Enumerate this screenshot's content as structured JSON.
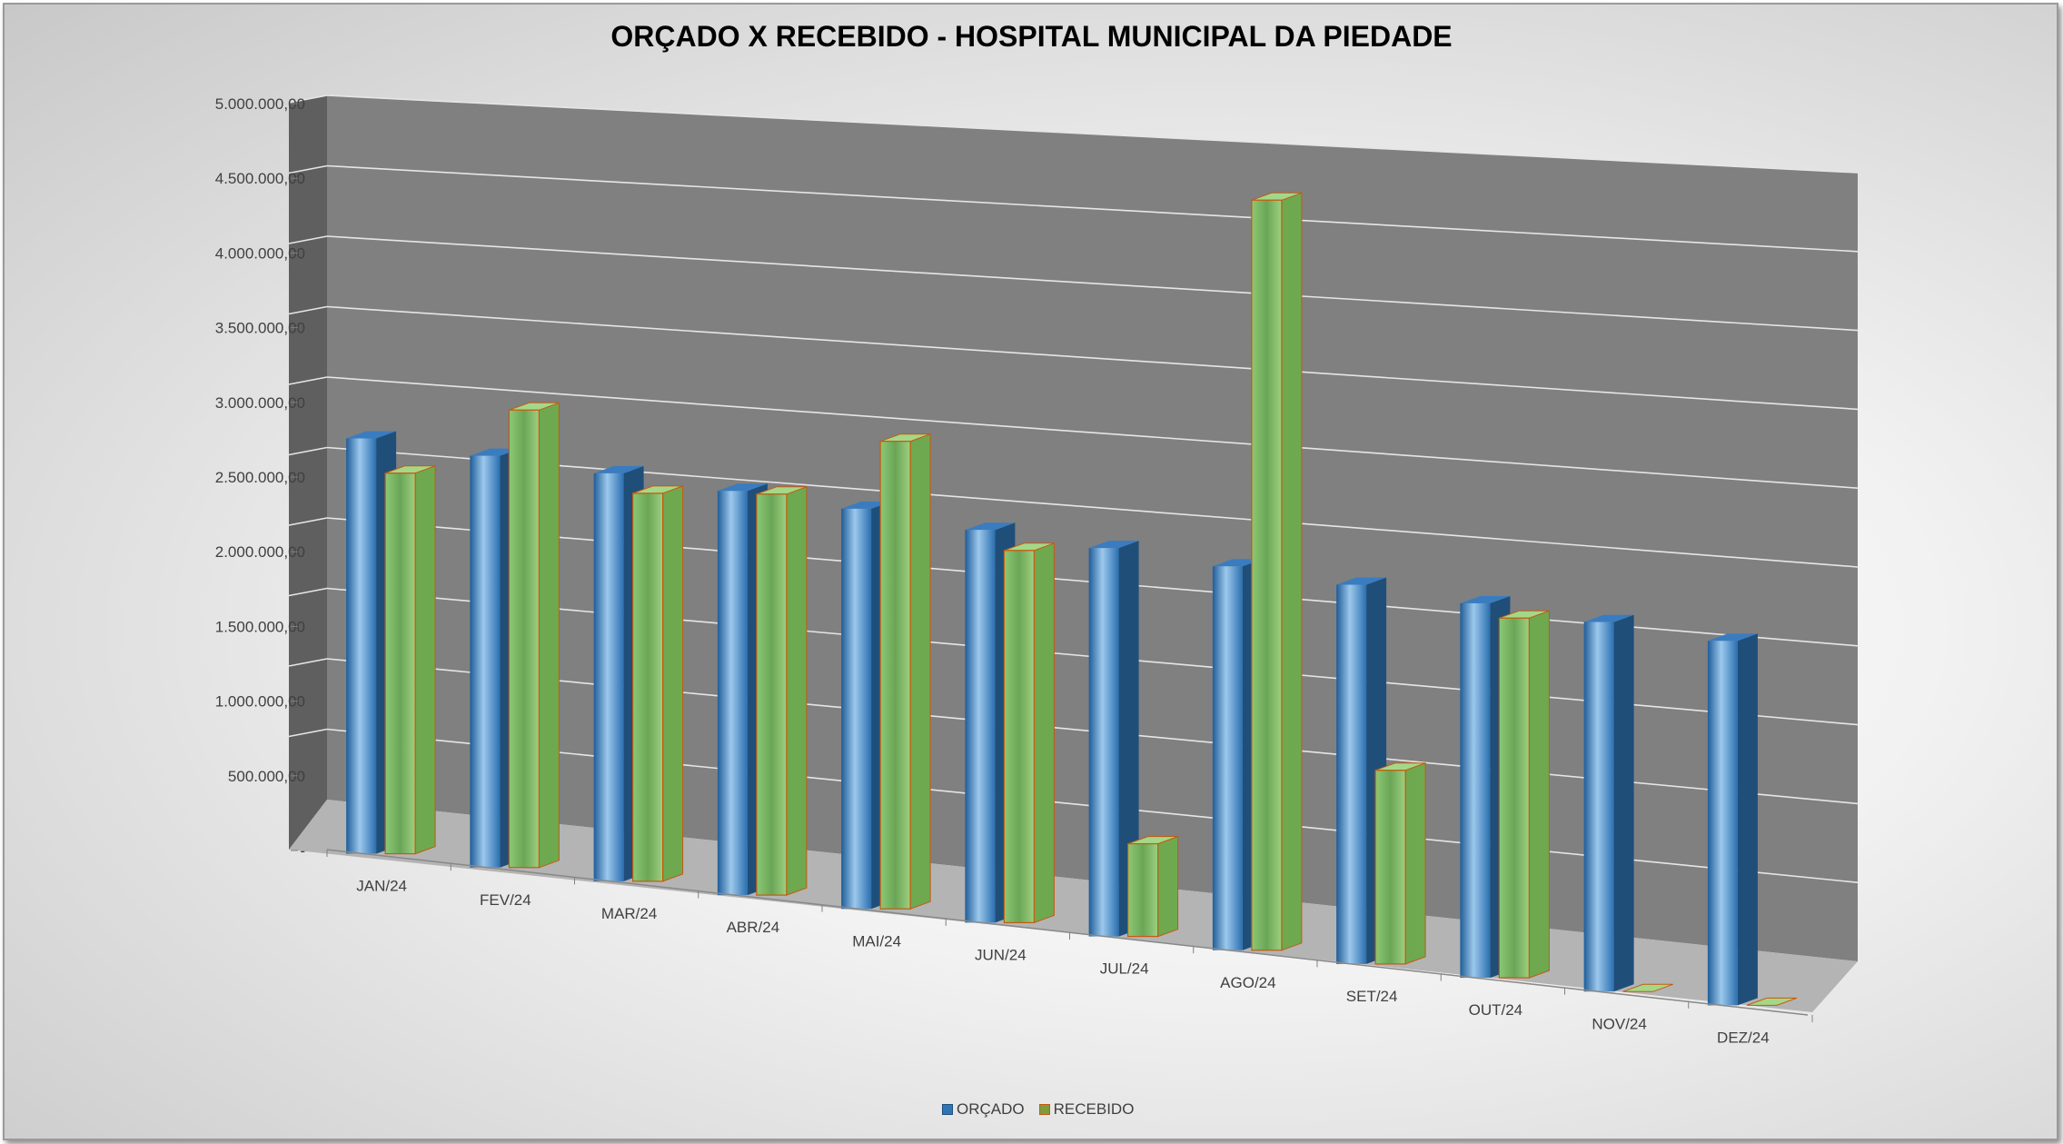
{
  "chart_data": {
    "type": "bar",
    "title": "ORÇADO X RECEBIDO - HOSPITAL MUNICIPAL DA PIEDADE",
    "categories": [
      "JAN/24",
      "FEV/24",
      "MAR/24",
      "ABR/24",
      "MAI/24",
      "JUN/24",
      "JUL/24",
      "AGO/24",
      "SET/24",
      "OUT/24",
      "NOV/24",
      "DEZ/24"
    ],
    "series": [
      {
        "name": "ORÇADO",
        "color": "#2e75b6",
        "values": [
          2750000,
          2700000,
          2650000,
          2600000,
          2550000,
          2480000,
          2430000,
          2380000,
          2330000,
          2280000,
          2230000,
          2180000
        ]
      },
      {
        "name": "RECEBIDO",
        "color": "#92d050",
        "values": [
          2520000,
          3000000,
          2520000,
          2580000,
          2980000,
          2350000,
          580000,
          4650000,
          1190000,
          2190000,
          0,
          0
        ]
      }
    ],
    "ylim": [
      0,
      5000000
    ],
    "y_ticks": [
      0,
      500000,
      1000000,
      1500000,
      2000000,
      2500000,
      3000000,
      3500000,
      4000000,
      4500000,
      5000000
    ],
    "y_tick_labels": [
      "-",
      "500.000,00",
      "1.000.000,00",
      "1.500.000,00",
      "2.000.000,00",
      "2.500.000,00",
      "3.000.000,00",
      "3.500.000,00",
      "4.000.000,00",
      "4.500.000,00",
      "5.000.000,00"
    ],
    "grid": true,
    "legend": "bottom",
    "wall_color": "#808080",
    "floor_color": "#b4b4b4"
  }
}
